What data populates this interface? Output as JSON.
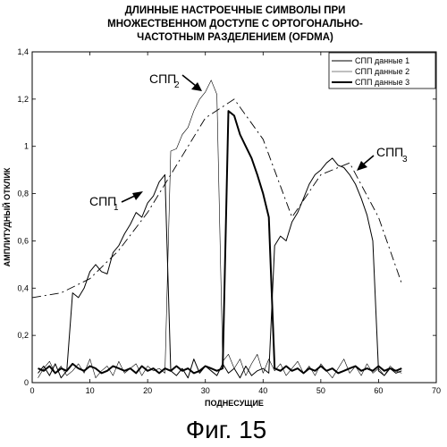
{
  "chart_data": {
    "type": "line",
    "title": [
      "ДЛИННЫЕ НАСТРОЕЧНЫЕ СИМВОЛЫ ПРИ",
      "МНОЖЕСТВЕННОМ ДОСТУПЕ С ОРТОГОНАЛЬНО-",
      "ЧАСТОТНЫМ РАЗДЕЛЕНИЕМ (OFDMA)"
    ],
    "xlabel": "ПОДНЕСУЩИЕ",
    "ylabel": "АМПЛИТУДНЫЙ ОТКЛИК",
    "xlim": [
      0,
      70
    ],
    "ylim": [
      0,
      1.4
    ],
    "xticks": [
      "0",
      "10",
      "20",
      "30",
      "40",
      "50",
      "60",
      "70"
    ],
    "yticks": [
      "0",
      "0,2",
      "0,4",
      "0,6",
      "0,8",
      "1",
      "1,2",
      "1,4"
    ],
    "legend_position": "top-right",
    "legend": [
      "СПП данные 1",
      "СПП данные 2",
      "СПП данные 3"
    ],
    "series": [
      {
        "name": "СПП данные 1",
        "x": [
          1,
          2,
          3,
          4,
          5,
          6,
          7,
          8,
          9,
          10,
          11,
          12,
          13,
          14,
          15,
          16,
          17,
          18,
          19,
          20,
          21,
          22,
          23,
          24,
          25,
          26,
          27,
          28,
          29,
          30,
          31,
          32,
          33,
          34,
          35,
          36,
          37,
          38,
          39,
          40,
          41,
          42,
          43,
          44,
          45,
          46,
          47,
          48,
          49,
          50,
          51,
          52,
          53,
          54,
          55,
          56,
          57,
          58,
          59,
          60,
          61,
          62,
          63,
          64
        ],
        "y": [
          0.04,
          0.07,
          0.03,
          0.08,
          0.02,
          0.05,
          0.38,
          0.36,
          0.4,
          0.47,
          0.5,
          0.47,
          0.46,
          0.55,
          0.58,
          0.63,
          0.67,
          0.72,
          0.7,
          0.76,
          0.79,
          0.85,
          0.88,
          0.05,
          0.03,
          0.06,
          0.02,
          0.1,
          0.04,
          0.07,
          0.05,
          0.03,
          0.08,
          0.04,
          0.06,
          0.02,
          0.07,
          0.03,
          0.05,
          0.06,
          0.04,
          0.58,
          0.62,
          0.6,
          0.68,
          0.72,
          0.78,
          0.84,
          0.88,
          0.9,
          0.93,
          0.95,
          0.92,
          0.91,
          0.88,
          0.84,
          0.78,
          0.71,
          0.6,
          0.05,
          0.03,
          0.06,
          0.04,
          0.05
        ]
      },
      {
        "name": "СПП данные 2",
        "x": [
          1,
          2,
          3,
          4,
          5,
          6,
          7,
          8,
          9,
          10,
          11,
          12,
          13,
          14,
          15,
          16,
          17,
          18,
          19,
          20,
          21,
          22,
          23,
          24,
          25,
          26,
          27,
          28,
          29,
          30,
          31,
          32,
          33,
          34,
          35,
          36,
          37,
          38,
          39,
          40,
          41,
          42,
          43,
          44,
          45,
          46,
          47,
          48,
          49,
          50,
          51,
          52,
          53,
          54,
          55,
          56,
          57,
          58,
          59,
          60,
          61,
          62,
          63,
          64
        ],
        "y": [
          0.02,
          0.06,
          0.09,
          0.04,
          0.07,
          0.03,
          0.05,
          0.08,
          0.04,
          0.1,
          0.02,
          0.05,
          0.07,
          0.03,
          0.09,
          0.04,
          0.06,
          0.08,
          0.03,
          0.07,
          0.05,
          0.06,
          0.04,
          0.98,
          0.99,
          1.05,
          1.08,
          1.15,
          1.2,
          1.23,
          1.28,
          1.22,
          0.09,
          0.12,
          0.06,
          0.1,
          0.03,
          0.08,
          0.12,
          0.04,
          0.1,
          0.05,
          0.08,
          0.03,
          0.06,
          0.09,
          0.04,
          0.07,
          0.03,
          0.08,
          0.05,
          0.02,
          0.06,
          0.1,
          0.04,
          0.07,
          0.03,
          0.08,
          0.04,
          0.06,
          0.03,
          0.07,
          0.05,
          0.04
        ]
      },
      {
        "name": "СПП данные 3",
        "x": [
          1,
          2,
          3,
          4,
          5,
          6,
          7,
          8,
          9,
          10,
          11,
          12,
          13,
          14,
          15,
          16,
          17,
          18,
          19,
          20,
          21,
          22,
          23,
          24,
          25,
          26,
          27,
          28,
          29,
          30,
          31,
          32,
          33,
          34,
          35,
          36,
          37,
          38,
          39,
          40,
          41,
          42,
          43,
          44,
          45,
          46,
          47,
          48,
          49,
          50,
          51,
          52,
          53,
          54,
          55,
          56,
          57,
          58,
          59,
          60,
          61,
          62,
          63,
          64
        ],
        "y": [
          0.06,
          0.05,
          0.07,
          0.04,
          0.06,
          0.05,
          0.08,
          0.06,
          0.05,
          0.07,
          0.06,
          0.04,
          0.05,
          0.07,
          0.06,
          0.05,
          0.06,
          0.04,
          0.07,
          0.05,
          0.06,
          0.04,
          0.06,
          0.05,
          0.07,
          0.05,
          0.06,
          0.04,
          0.05,
          0.07,
          0.06,
          0.05,
          0.06,
          1.15,
          1.13,
          1.05,
          1.0,
          0.95,
          0.88,
          0.8,
          0.7,
          0.06,
          0.05,
          0.07,
          0.05,
          0.06,
          0.04,
          0.06,
          0.05,
          0.07,
          0.05,
          0.06,
          0.04,
          0.05,
          0.06,
          0.07,
          0.05,
          0.06,
          0.05,
          0.07,
          0.05,
          0.06,
          0.05,
          0.06
        ]
      },
      {
        "name": "",
        "x": [
          0,
          5,
          10,
          15,
          20,
          25,
          30,
          35,
          40,
          45,
          50,
          55,
          60,
          64
        ],
        "y": [
          0.36,
          0.38,
          0.44,
          0.56,
          0.72,
          0.92,
          1.12,
          1.2,
          1.03,
          0.7,
          0.88,
          0.93,
          0.7,
          0.42
        ]
      }
    ],
    "annotations": [
      {
        "text": "СПП",
        "sub": "1",
        "target": [
          20,
          0.73
        ]
      },
      {
        "text": "СПП",
        "sub": "2",
        "target": [
          31,
          1.25
        ]
      },
      {
        "text": "СПП",
        "sub": "3",
        "target": [
          54,
          0.9
        ]
      }
    ]
  },
  "caption": "Фиг. 15"
}
